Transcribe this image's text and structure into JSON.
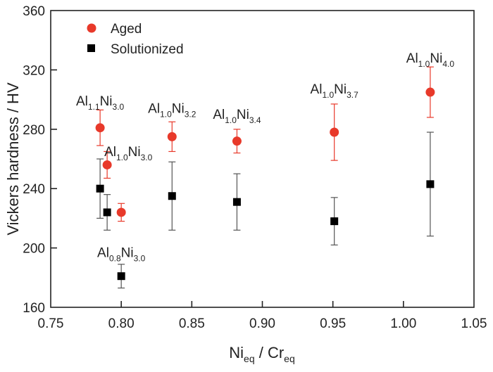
{
  "chart_data": {
    "type": "scatter",
    "title": "",
    "xlabel": {
      "main": "Ni",
      "sub1": "eq",
      "mid": " / Cr",
      "sub2": "eq"
    },
    "ylabel": "Vickers hardness / HV",
    "xlim": [
      0.75,
      1.05
    ],
    "ylim": [
      160,
      360
    ],
    "xticks": [
      "0.75",
      "0.80",
      "0.85",
      "0.90",
      "0.95",
      "1.00",
      "1.05"
    ],
    "yticks": [
      "160",
      "200",
      "240",
      "280",
      "320",
      "360"
    ],
    "grid": false,
    "legend_position": "top-left",
    "series": [
      {
        "name": "Aged",
        "marker": "circle",
        "color": "#e8392a",
        "points": [
          {
            "x": 0.785,
            "y": 281,
            "err": 12
          },
          {
            "x": 0.79,
            "y": 256,
            "err": 9
          },
          {
            "x": 0.8,
            "y": 224,
            "err": 6
          },
          {
            "x": 0.836,
            "y": 275,
            "err": 10
          },
          {
            "x": 0.882,
            "y": 272,
            "err": 8
          },
          {
            "x": 0.951,
            "y": 278,
            "err": 19
          },
          {
            "x": 1.019,
            "y": 305,
            "err": 17
          }
        ]
      },
      {
        "name": "Solutionized",
        "marker": "square",
        "color": "#000000",
        "points": [
          {
            "x": 0.785,
            "y": 240,
            "err": 20
          },
          {
            "x": 0.79,
            "y": 224,
            "err": 12
          },
          {
            "x": 0.8,
            "y": 181,
            "err": 8
          },
          {
            "x": 0.836,
            "y": 235,
            "err": 23
          },
          {
            "x": 0.882,
            "y": 231,
            "err": 19
          },
          {
            "x": 0.951,
            "y": 218,
            "err": 16
          },
          {
            "x": 1.019,
            "y": 243,
            "err": 35
          }
        ]
      }
    ],
    "annotations": [
      {
        "al": "1.1",
        "ni": "3.0",
        "x": 0.785,
        "y": 296
      },
      {
        "al": "1.0",
        "ni": "3.0",
        "x": 0.805,
        "y": 262
      },
      {
        "al": "1.0",
        "ni": "3.2",
        "x": 0.836,
        "y": 291
      },
      {
        "al": "1.0",
        "ni": "3.4",
        "x": 0.882,
        "y": 287
      },
      {
        "al": "1.0",
        "ni": "3.7",
        "x": 0.951,
        "y": 304
      },
      {
        "al": "1.0",
        "ni": "4.0",
        "x": 1.019,
        "y": 325
      },
      {
        "al": "0.8",
        "ni": "3.0",
        "x": 0.8,
        "y": 194
      }
    ]
  }
}
